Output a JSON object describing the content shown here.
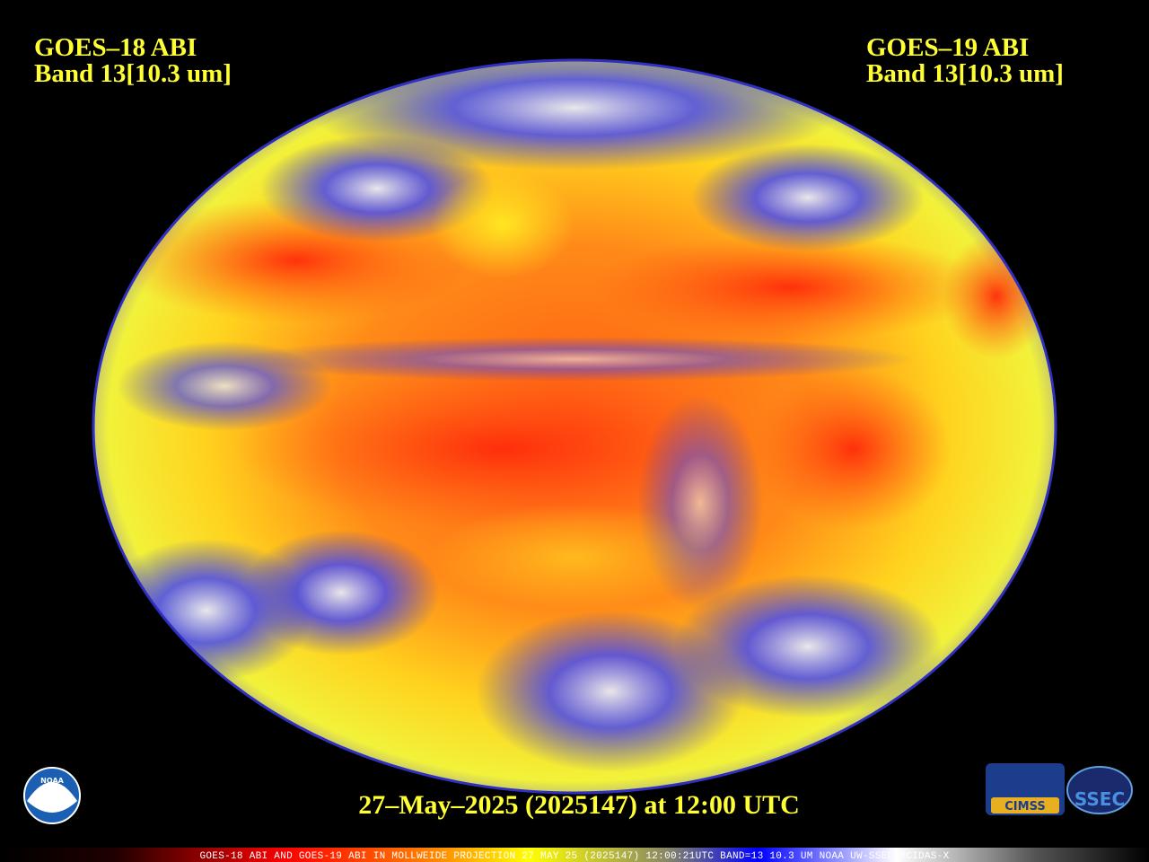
{
  "header": {
    "left": {
      "satellite": "GOES–18 ABI",
      "band": "Band 13[10.3 um]"
    },
    "right": {
      "satellite": "GOES–19 ABI",
      "band": "Band 13[10.3 um]"
    }
  },
  "timestamp": "27–May–2025 (2025147) at 12:00 UTC",
  "footer": "GOES-18 ABI AND GOES-19 ABI IN MOLLWEIDE PROJECTION 27 MAY 25 (2025147) 12:00:21UTC BAND=13 10.3 UM NOAA UW-SSEC MCIDAS-X",
  "logos": {
    "noaa": "NOAA",
    "cimss": "CIMSS",
    "ssec": "SSEC"
  }
}
